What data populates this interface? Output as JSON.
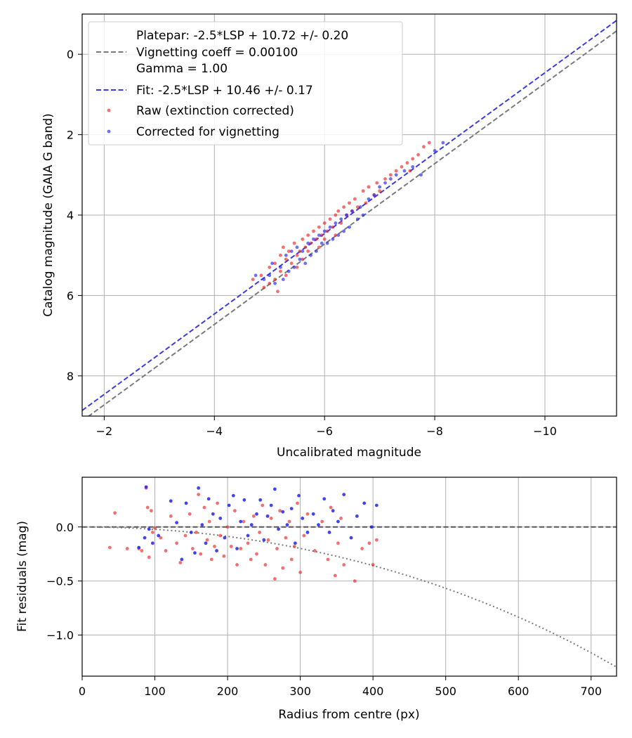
{
  "chart_data": [
    {
      "type": "scatter",
      "xlabel": "Uncalibrated magnitude",
      "ylabel": "Catalog magnitude (GAIA G band)",
      "xlim": [
        -1.6,
        -11.3
      ],
      "ylim": [
        9.0,
        -1.0
      ],
      "xticks": [
        -2,
        -4,
        -6,
        -8,
        -10
      ],
      "xtick_labels": [
        "−2",
        "−4",
        "−6",
        "−8",
        "−10"
      ],
      "yticks": [
        0,
        2,
        4,
        6,
        8
      ],
      "ytick_labels": [
        "0",
        "2",
        "4",
        "6",
        "8"
      ],
      "grid": true,
      "legend_location": "upper-left",
      "legend": {
        "platepar_line1": "Platepar: -2.5*LSP + 10.72 +/- 0.20",
        "platepar_line2": "Vignetting coeff = 0.00100",
        "platepar_line3": "Gamma = 1.00",
        "fit": "Fit: -2.5*LSP + 10.46 +/- 0.17",
        "raw": "Raw (extinction corrected)",
        "corrected": "Corrected for vignetting"
      },
      "lines": [
        {
          "name": "Platepar",
          "intercept": 10.72,
          "slope_per_lsp": -2.5,
          "color": "#7a7a7a",
          "style": "dashed"
        },
        {
          "name": "Fit",
          "intercept": 10.46,
          "slope_per_lsp": -2.5,
          "color": "#3a3ae8",
          "style": "dashed"
        }
      ],
      "series": [
        {
          "name": "Raw (extinction corrected)",
          "color": "#ee2222",
          "points": [
            [
              -4.7,
              5.6
            ],
            [
              -4.85,
              5.5
            ],
            [
              -4.9,
              5.8
            ],
            [
              -5.0,
              5.3
            ],
            [
              -5.0,
              5.7
            ],
            [
              -5.1,
              5.2
            ],
            [
              -5.1,
              5.6
            ],
            [
              -5.15,
              5.9
            ],
            [
              -5.2,
              5.0
            ],
            [
              -5.2,
              5.4
            ],
            [
              -5.25,
              4.8
            ],
            [
              -5.3,
              5.1
            ],
            [
              -5.3,
              5.5
            ],
            [
              -5.35,
              4.9
            ],
            [
              -5.4,
              5.2
            ],
            [
              -5.45,
              4.7
            ],
            [
              -5.5,
              5.0
            ],
            [
              -5.5,
              5.3
            ],
            [
              -5.55,
              4.9
            ],
            [
              -5.6,
              4.6
            ],
            [
              -5.6,
              5.1
            ],
            [
              -5.65,
              4.8
            ],
            [
              -5.7,
              4.5
            ],
            [
              -5.7,
              4.9
            ],
            [
              -5.75,
              4.7
            ],
            [
              -5.8,
              4.4
            ],
            [
              -5.85,
              4.6
            ],
            [
              -5.9,
              4.3
            ],
            [
              -5.9,
              4.8
            ],
            [
              -5.95,
              4.5
            ],
            [
              -6.0,
              4.2
            ],
            [
              -6.0,
              4.6
            ],
            [
              -6.05,
              4.4
            ],
            [
              -6.1,
              4.1
            ],
            [
              -6.15,
              4.3
            ],
            [
              -6.2,
              4.0
            ],
            [
              -6.2,
              4.5
            ],
            [
              -6.25,
              3.9
            ],
            [
              -6.3,
              4.2
            ],
            [
              -6.35,
              3.8
            ],
            [
              -6.4,
              4.0
            ],
            [
              -6.45,
              3.7
            ],
            [
              -6.5,
              3.9
            ],
            [
              -6.55,
              3.6
            ],
            [
              -6.6,
              3.8
            ],
            [
              -6.7,
              3.4
            ],
            [
              -6.75,
              3.7
            ],
            [
              -6.8,
              3.3
            ],
            [
              -6.9,
              3.5
            ],
            [
              -6.95,
              3.2
            ],
            [
              -7.0,
              3.4
            ],
            [
              -7.1,
              3.1
            ],
            [
              -7.2,
              3.0
            ],
            [
              -7.3,
              2.9
            ],
            [
              -7.4,
              2.8
            ],
            [
              -7.5,
              2.7
            ],
            [
              -7.55,
              2.9
            ],
            [
              -7.6,
              2.6
            ],
            [
              -7.7,
              2.5
            ],
            [
              -7.8,
              2.3
            ],
            [
              -7.9,
              2.2
            ]
          ]
        },
        {
          "name": "Corrected for vignetting",
          "color": "#2222ee",
          "points": [
            [
              -4.75,
              5.5
            ],
            [
              -4.9,
              5.6
            ],
            [
              -5.0,
              5.5
            ],
            [
              -5.05,
              5.2
            ],
            [
              -5.1,
              5.7
            ],
            [
              -5.2,
              5.3
            ],
            [
              -5.25,
              5.6
            ],
            [
              -5.3,
              5.0
            ],
            [
              -5.35,
              5.4
            ],
            [
              -5.4,
              4.9
            ],
            [
              -5.45,
              5.3
            ],
            [
              -5.5,
              4.8
            ],
            [
              -5.55,
              5.1
            ],
            [
              -5.6,
              4.9
            ],
            [
              -5.65,
              5.2
            ],
            [
              -5.7,
              4.7
            ],
            [
              -5.75,
              5.0
            ],
            [
              -5.8,
              4.6
            ],
            [
              -5.85,
              4.9
            ],
            [
              -5.9,
              4.5
            ],
            [
              -5.95,
              4.7
            ],
            [
              -6.0,
              4.4
            ],
            [
              -6.05,
              4.7
            ],
            [
              -6.1,
              4.3
            ],
            [
              -6.15,
              4.6
            ],
            [
              -6.2,
              4.2
            ],
            [
              -6.25,
              4.5
            ],
            [
              -6.3,
              4.1
            ],
            [
              -6.35,
              4.4
            ],
            [
              -6.4,
              4.0
            ],
            [
              -6.45,
              4.3
            ],
            [
              -6.5,
              3.9
            ],
            [
              -6.6,
              4.1
            ],
            [
              -6.65,
              3.8
            ],
            [
              -6.7,
              4.0
            ],
            [
              -6.8,
              3.6
            ],
            [
              -6.9,
              3.5
            ],
            [
              -7.0,
              3.3
            ],
            [
              -7.1,
              3.2
            ],
            [
              -7.2,
              3.1
            ],
            [
              -7.3,
              3.0
            ],
            [
              -7.45,
              2.9
            ],
            [
              -7.6,
              2.8
            ],
            [
              -7.75,
              3.0
            ],
            [
              -8.0,
              2.4
            ],
            [
              -8.15,
              2.2
            ]
          ]
        }
      ]
    },
    {
      "type": "scatter",
      "xlabel": "Radius from centre (px)",
      "ylabel": "Fit residuals (mag)",
      "xlim": [
        0,
        735
      ],
      "ylim": [
        -1.38,
        0.46
      ],
      "xticks": [
        0,
        100,
        200,
        300,
        400,
        500,
        600,
        700
      ],
      "xtick_labels": [
        "0",
        "100",
        "200",
        "300",
        "400",
        "500",
        "600",
        "700"
      ],
      "yticks": [
        0.0,
        -0.5,
        -1.0
      ],
      "ytick_labels": [
        "0.0",
        "−0.5",
        "−1.0"
      ],
      "grid": true,
      "lines": [
        {
          "name": "zero",
          "y": 0.0,
          "color": "#555555",
          "style": "dashed"
        },
        {
          "name": "vignetting model",
          "coeff": 0.001,
          "color": "#7a7a7a",
          "style": "dotted"
        }
      ],
      "series": [
        {
          "name": "Raw (extinction corrected)",
          "color": "#ee2222",
          "points": [
            [
              38,
              -0.19
            ],
            [
              45,
              0.13
            ],
            [
              62,
              -0.2
            ],
            [
              78,
              -0.2
            ],
            [
              82,
              -0.22
            ],
            [
              88,
              0.36
            ],
            [
              90,
              0.18
            ],
            [
              92,
              -0.28
            ],
            [
              95,
              0.15
            ],
            [
              97,
              -0.05
            ],
            [
              100,
              -0.01
            ],
            [
              108,
              -0.1
            ],
            [
              115,
              -0.22
            ],
            [
              122,
              0.1
            ],
            [
              130,
              -0.15
            ],
            [
              135,
              -0.33
            ],
            [
              142,
              -0.08
            ],
            [
              148,
              0.12
            ],
            [
              152,
              -0.2
            ],
            [
              157,
              -0.05
            ],
            [
              160,
              0.3
            ],
            [
              163,
              -0.25
            ],
            [
              168,
              0.18
            ],
            [
              172,
              -0.12
            ],
            [
              175,
              0.05
            ],
            [
              178,
              -0.3
            ],
            [
              182,
              -0.18
            ],
            [
              186,
              0.22
            ],
            [
              190,
              -0.08
            ],
            [
              195,
              -0.27
            ],
            [
              200,
              0.0
            ],
            [
              205,
              -0.18
            ],
            [
              210,
              0.15
            ],
            [
              213,
              -0.35
            ],
            [
              218,
              -0.2
            ],
            [
              222,
              0.05
            ],
            [
              228,
              -0.15
            ],
            [
              232,
              -0.3
            ],
            [
              236,
              0.1
            ],
            [
              240,
              -0.25
            ],
            [
              244,
              -0.05
            ],
            [
              248,
              0.2
            ],
            [
              252,
              -0.35
            ],
            [
              256,
              -0.12
            ],
            [
              260,
              0.08
            ],
            [
              265,
              -0.48
            ],
            [
              268,
              -0.2
            ],
            [
              272,
              0.15
            ],
            [
              276,
              -0.38
            ],
            [
              280,
              -0.1
            ],
            [
              285,
              0.05
            ],
            [
              288,
              -0.3
            ],
            [
              292,
              -0.18
            ],
            [
              296,
              0.22
            ],
            [
              300,
              -0.42
            ],
            [
              305,
              -0.08
            ],
            [
              310,
              0.12
            ],
            [
              320,
              -0.22
            ],
            [
              330,
              0.05
            ],
            [
              338,
              -0.3
            ],
            [
              342,
              0.18
            ],
            [
              348,
              -0.45
            ],
            [
              352,
              -0.15
            ],
            [
              356,
              0.08
            ],
            [
              360,
              -0.35
            ],
            [
              375,
              -0.5
            ],
            [
              385,
              -0.2
            ],
            [
              395,
              -0.15
            ],
            [
              400,
              -0.35
            ],
            [
              405,
              -0.12
            ]
          ]
        },
        {
          "name": "Corrected for vignetting",
          "color": "#2222ee",
          "points": [
            [
              78,
              -0.19
            ],
            [
              86,
              -0.1
            ],
            [
              88,
              0.37
            ],
            [
              92,
              -0.02
            ],
            [
              97,
              -0.15
            ],
            [
              105,
              -0.08
            ],
            [
              122,
              0.24
            ],
            [
              130,
              0.04
            ],
            [
              137,
              -0.3
            ],
            [
              143,
              0.22
            ],
            [
              150,
              -0.05
            ],
            [
              155,
              -0.24
            ],
            [
              160,
              0.36
            ],
            [
              165,
              0.02
            ],
            [
              170,
              -0.15
            ],
            [
              174,
              0.26
            ],
            [
              180,
              0.12
            ],
            [
              185,
              -0.22
            ],
            [
              190,
              0.08
            ],
            [
              196,
              -0.1
            ],
            [
              202,
              0.2
            ],
            [
              208,
              0.29
            ],
            [
              213,
              -0.2
            ],
            [
              218,
              0.05
            ],
            [
              223,
              0.25
            ],
            [
              228,
              -0.08
            ],
            [
              233,
              0.02
            ],
            [
              240,
              0.12
            ],
            [
              245,
              0.25
            ],
            [
              250,
              -0.12
            ],
            [
              255,
              0.1
            ],
            [
              260,
              0.2
            ],
            [
              265,
              0.35
            ],
            [
              270,
              -0.02
            ],
            [
              276,
              0.14
            ],
            [
              282,
              0.02
            ],
            [
              288,
              0.17
            ],
            [
              293,
              -0.15
            ],
            [
              298,
              0.29
            ],
            [
              303,
              0.08
            ],
            [
              310,
              -0.05
            ],
            [
              318,
              0.12
            ],
            [
              325,
              0.02
            ],
            [
              333,
              0.26
            ],
            [
              340,
              -0.05
            ],
            [
              345,
              0.15
            ],
            [
              352,
              0.05
            ],
            [
              360,
              0.3
            ],
            [
              370,
              -0.1
            ],
            [
              378,
              0.1
            ],
            [
              388,
              0.22
            ],
            [
              398,
              0.0
            ],
            [
              405,
              0.2
            ]
          ]
        }
      ]
    }
  ]
}
